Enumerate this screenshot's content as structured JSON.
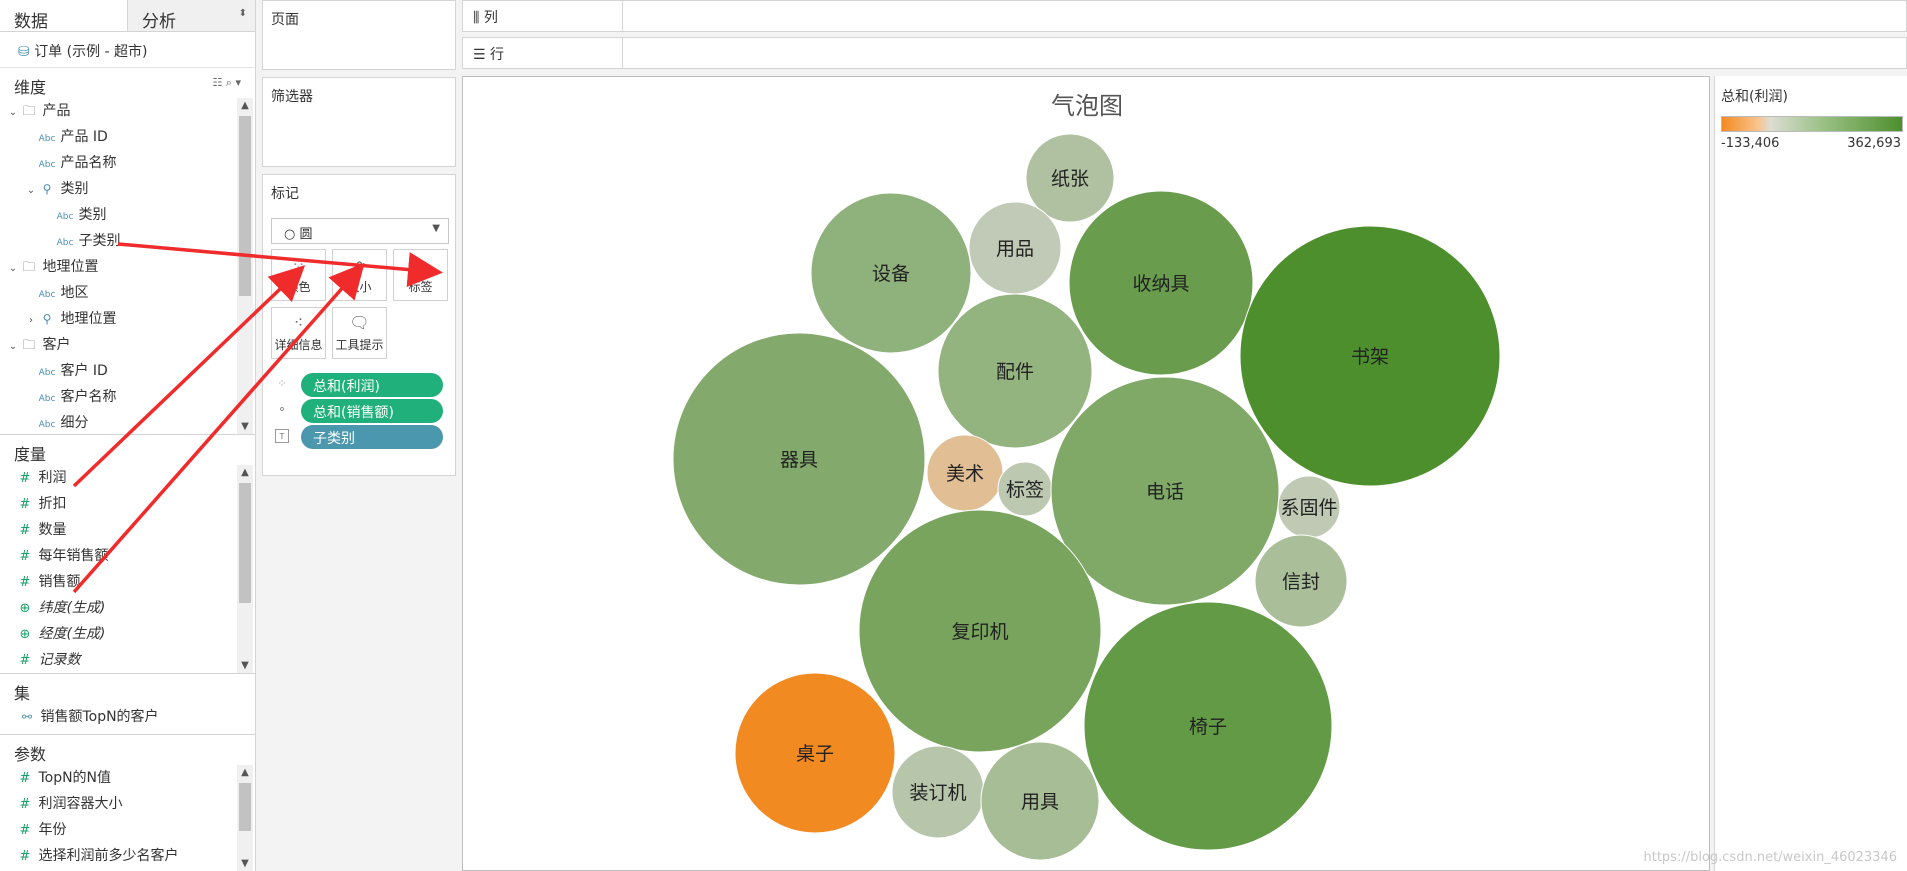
{
  "tabs": {
    "data": "数据",
    "analysis": "分析"
  },
  "datasource": "订单 (示例 - 超市)",
  "dimensions": {
    "header": "维度",
    "items": [
      {
        "label": "产品",
        "type": "folder",
        "indent": 0
      },
      {
        "label": "产品 ID",
        "type": "abc",
        "indent": 1
      },
      {
        "label": "产品名称",
        "type": "abc",
        "indent": 1
      },
      {
        "label": "类别",
        "type": "hier",
        "indent": 1
      },
      {
        "label": "类别",
        "type": "abc",
        "indent": 2
      },
      {
        "label": "子类别",
        "type": "abc",
        "indent": 2
      },
      {
        "label": "地理位置",
        "type": "folder",
        "indent": 0
      },
      {
        "label": "地区",
        "type": "abc",
        "indent": 1
      },
      {
        "label": "地理位置",
        "type": "hier-collapsed",
        "indent": 1
      },
      {
        "label": "客户",
        "type": "folder",
        "indent": 0
      },
      {
        "label": "客户 ID",
        "type": "abc",
        "indent": 1
      },
      {
        "label": "客户名称",
        "type": "abc",
        "indent": 1
      },
      {
        "label": "细分",
        "type": "abc",
        "indent": 1
      }
    ]
  },
  "measures": {
    "header": "度量",
    "items": [
      {
        "label": "利润",
        "italic": false
      },
      {
        "label": "折扣",
        "italic": false
      },
      {
        "label": "数量",
        "italic": false
      },
      {
        "label": "每年销售额",
        "italic": false
      },
      {
        "label": "销售额",
        "italic": false
      },
      {
        "label": "纬度(生成)",
        "italic": true
      },
      {
        "label": "经度(生成)",
        "italic": true
      },
      {
        "label": "记录数",
        "italic": true
      }
    ]
  },
  "sets": {
    "header": "集",
    "items": [
      "销售额TopN的客户"
    ]
  },
  "parameters": {
    "header": "参数",
    "items": [
      "TopN的N值",
      "利润容器大小",
      "年份",
      "选择利润前多少名客户"
    ]
  },
  "pages": "页面",
  "filters": "筛选器",
  "marks": {
    "title": "标记",
    "type": "圆",
    "buttons": [
      "颜色",
      "大小",
      "标签",
      "详细信息",
      "工具提示"
    ],
    "pills": [
      {
        "label": "总和(利润)",
        "style": "green",
        "icon": "color-icon"
      },
      {
        "label": "总和(销售额)",
        "style": "green",
        "icon": "size-icon"
      },
      {
        "label": "子类别",
        "style": "blue",
        "icon": "label-icon"
      }
    ]
  },
  "shelves": {
    "columns": "列",
    "rows": "行"
  },
  "legend": {
    "title": "总和(利润)",
    "min": "-133,406",
    "max": "362,693"
  },
  "watermark": "https://blog.csdn.net/weixin_46023346",
  "colors": {
    "accent_green": "#1fb07b",
    "pill_blue": "#4a97ae",
    "arrow_red": "#f02b2b"
  },
  "chart_data": {
    "type": "bubble",
    "title": "气泡图",
    "color_measure": "总和(利润)",
    "size_measure": "总和(销售额)",
    "color_range": [
      -133406,
      362693
    ],
    "bubbles": [
      {
        "label": "纸张",
        "profit": 20000
      },
      {
        "label": "用品",
        "profit": 2000
      },
      {
        "label": "设备",
        "profit": 90000
      },
      {
        "label": "收纳具",
        "profit": 230000
      },
      {
        "label": "书架",
        "profit": 362693
      },
      {
        "label": "配件",
        "profit": 80000
      },
      {
        "label": "器具",
        "profit": 130000
      },
      {
        "label": "美术",
        "profit": -40000
      },
      {
        "label": "标签",
        "profit": 5000
      },
      {
        "label": "电话",
        "profit": 140000
      },
      {
        "label": "系固件",
        "profit": 3000
      },
      {
        "label": "信封",
        "profit": 30000
      },
      {
        "label": "复印机",
        "profit": 170000
      },
      {
        "label": "椅子",
        "profit": 260000
      },
      {
        "label": "桌子",
        "profit": -133406
      },
      {
        "label": "装订机",
        "profit": 10000
      },
      {
        "label": "用具",
        "profit": 35000
      }
    ]
  }
}
